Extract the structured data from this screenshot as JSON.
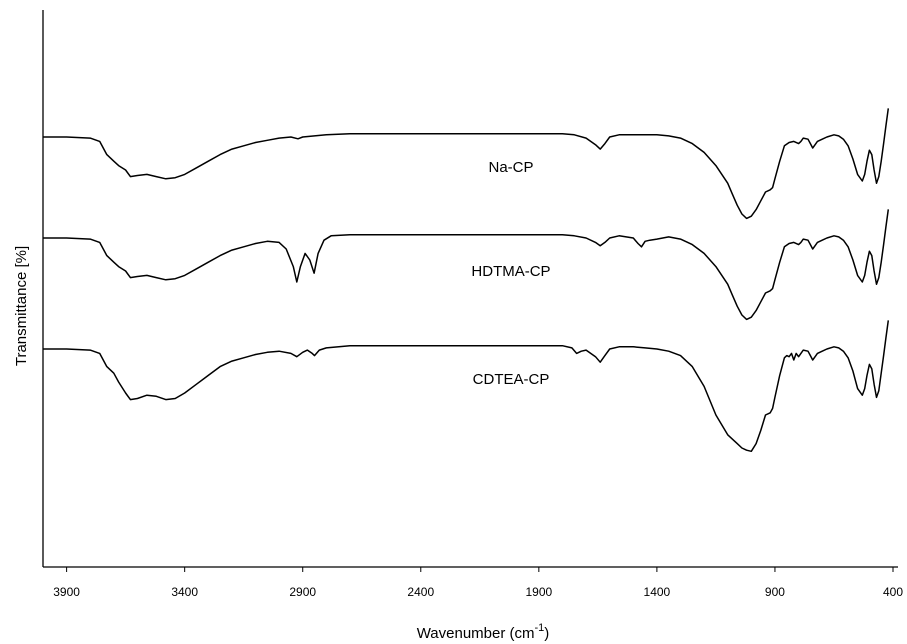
{
  "chart_data": {
    "type": "line",
    "title": "",
    "xlabel": "Wavenumber (cm",
    "xlabel_sup": "-1",
    "xlabel_close": ")",
    "ylabel": "Transmittance [%]",
    "xlim": [
      4000,
      400
    ],
    "x_reversed": true,
    "x_ticks": [
      3900,
      3400,
      2900,
      2400,
      1900,
      1400,
      900,
      400
    ],
    "y_ticks_shown": false,
    "grid": false,
    "legend": "inline labels",
    "series": [
      {
        "name": "Na-CP",
        "points": [
          [
            4000,
            25.0
          ],
          [
            3900,
            25.0
          ],
          [
            3800,
            25.5
          ],
          [
            3760,
            27.0
          ],
          [
            3730,
            33.0
          ],
          [
            3700,
            36.0
          ],
          [
            3680,
            38.0
          ],
          [
            3650,
            40.0
          ],
          [
            3630,
            43.0
          ],
          [
            3600,
            42.5
          ],
          [
            3560,
            42.0
          ],
          [
            3520,
            43.0
          ],
          [
            3480,
            44.0
          ],
          [
            3440,
            43.5
          ],
          [
            3400,
            42.0
          ],
          [
            3350,
            39.0
          ],
          [
            3300,
            36.0
          ],
          [
            3250,
            33.0
          ],
          [
            3200,
            30.5
          ],
          [
            3150,
            29.0
          ],
          [
            3100,
            27.5
          ],
          [
            3050,
            26.5
          ],
          [
            3000,
            25.5
          ],
          [
            2950,
            25.0
          ],
          [
            2920,
            25.8
          ],
          [
            2900,
            25.0
          ],
          [
            2850,
            24.5
          ],
          [
            2800,
            24.0
          ],
          [
            2700,
            23.5
          ],
          [
            2600,
            23.5
          ],
          [
            2500,
            23.5
          ],
          [
            2400,
            23.5
          ],
          [
            2300,
            23.5
          ],
          [
            2200,
            23.5
          ],
          [
            2100,
            23.5
          ],
          [
            2000,
            23.5
          ],
          [
            1900,
            23.5
          ],
          [
            1800,
            23.5
          ],
          [
            1750,
            24.0
          ],
          [
            1700,
            25.5
          ],
          [
            1660,
            28.5
          ],
          [
            1640,
            30.5
          ],
          [
            1620,
            28.0
          ],
          [
            1600,
            25.0
          ],
          [
            1560,
            24.0
          ],
          [
            1500,
            24.0
          ],
          [
            1450,
            24.0
          ],
          [
            1400,
            24.0
          ],
          [
            1350,
            24.5
          ],
          [
            1300,
            25.5
          ],
          [
            1250,
            28.0
          ],
          [
            1200,
            32.0
          ],
          [
            1150,
            38.0
          ],
          [
            1100,
            46.0
          ],
          [
            1080,
            51.0
          ],
          [
            1060,
            56.0
          ],
          [
            1040,
            60.0
          ],
          [
            1020,
            62.0
          ],
          [
            1000,
            61.0
          ],
          [
            980,
            58.0
          ],
          [
            960,
            54.0
          ],
          [
            940,
            50.0
          ],
          [
            920,
            49.0
          ],
          [
            910,
            48.0
          ],
          [
            900,
            44.0
          ],
          [
            880,
            36.0
          ],
          [
            860,
            29.0
          ],
          [
            840,
            27.5
          ],
          [
            820,
            27.0
          ],
          [
            800,
            28.0
          ],
          [
            790,
            27.0
          ],
          [
            780,
            25.5
          ],
          [
            760,
            26.0
          ],
          [
            750,
            28.0
          ],
          [
            740,
            30.0
          ],
          [
            730,
            28.5
          ],
          [
            720,
            27.0
          ],
          [
            700,
            26.0
          ],
          [
            680,
            25.0
          ],
          [
            650,
            24.0
          ],
          [
            630,
            24.5
          ],
          [
            610,
            26.0
          ],
          [
            590,
            29.0
          ],
          [
            570,
            35.0
          ],
          [
            550,
            42.0
          ],
          [
            530,
            45.0
          ],
          [
            520,
            42.0
          ],
          [
            510,
            36.0
          ],
          [
            500,
            31.0
          ],
          [
            490,
            33.0
          ],
          [
            480,
            40.0
          ],
          [
            470,
            46.0
          ],
          [
            460,
            43.0
          ],
          [
            450,
            36.0
          ],
          [
            440,
            28.0
          ],
          [
            430,
            20.0
          ],
          [
            420,
            12.0
          ]
        ]
      },
      {
        "name": "HDTMA-CP",
        "points": [
          [
            4000,
            25.0
          ],
          [
            3900,
            25.0
          ],
          [
            3800,
            25.5
          ],
          [
            3760,
            27.0
          ],
          [
            3730,
            33.0
          ],
          [
            3700,
            36.0
          ],
          [
            3680,
            38.0
          ],
          [
            3650,
            40.0
          ],
          [
            3630,
            43.0
          ],
          [
            3600,
            42.5
          ],
          [
            3560,
            42.0
          ],
          [
            3520,
            43.0
          ],
          [
            3480,
            44.0
          ],
          [
            3440,
            43.5
          ],
          [
            3400,
            42.0
          ],
          [
            3350,
            39.0
          ],
          [
            3300,
            36.0
          ],
          [
            3250,
            33.0
          ],
          [
            3200,
            30.5
          ],
          [
            3150,
            29.0
          ],
          [
            3100,
            27.5
          ],
          [
            3050,
            26.5
          ],
          [
            3000,
            27.0
          ],
          [
            2970,
            30.0
          ],
          [
            2940,
            38.0
          ],
          [
            2925,
            45.0
          ],
          [
            2910,
            38.0
          ],
          [
            2890,
            32.0
          ],
          [
            2870,
            35.0
          ],
          [
            2852,
            41.0
          ],
          [
            2835,
            32.0
          ],
          [
            2810,
            26.0
          ],
          [
            2780,
            24.0
          ],
          [
            2700,
            23.5
          ],
          [
            2600,
            23.5
          ],
          [
            2500,
            23.5
          ],
          [
            2400,
            23.5
          ],
          [
            2300,
            23.5
          ],
          [
            2200,
            23.5
          ],
          [
            2100,
            23.5
          ],
          [
            2000,
            23.5
          ],
          [
            1900,
            23.5
          ],
          [
            1800,
            23.5
          ],
          [
            1750,
            24.0
          ],
          [
            1700,
            25.0
          ],
          [
            1660,
            27.0
          ],
          [
            1640,
            28.5
          ],
          [
            1620,
            27.0
          ],
          [
            1600,
            25.0
          ],
          [
            1560,
            24.0
          ],
          [
            1500,
            25.0
          ],
          [
            1480,
            27.5
          ],
          [
            1465,
            29.0
          ],
          [
            1450,
            26.5
          ],
          [
            1430,
            26.0
          ],
          [
            1400,
            25.5
          ],
          [
            1350,
            24.5
          ],
          [
            1300,
            25.5
          ],
          [
            1250,
            28.0
          ],
          [
            1200,
            32.0
          ],
          [
            1150,
            38.0
          ],
          [
            1100,
            46.0
          ],
          [
            1080,
            51.0
          ],
          [
            1060,
            56.0
          ],
          [
            1040,
            60.0
          ],
          [
            1020,
            62.0
          ],
          [
            1000,
            61.0
          ],
          [
            980,
            58.0
          ],
          [
            960,
            54.0
          ],
          [
            940,
            50.0
          ],
          [
            920,
            49.0
          ],
          [
            910,
            48.0
          ],
          [
            900,
            44.0
          ],
          [
            880,
            36.0
          ],
          [
            860,
            29.0
          ],
          [
            840,
            27.5
          ],
          [
            820,
            27.0
          ],
          [
            800,
            28.0
          ],
          [
            790,
            27.0
          ],
          [
            780,
            25.5
          ],
          [
            760,
            26.0
          ],
          [
            750,
            28.0
          ],
          [
            740,
            30.0
          ],
          [
            730,
            28.5
          ],
          [
            720,
            27.0
          ],
          [
            700,
            26.0
          ],
          [
            680,
            25.0
          ],
          [
            650,
            24.0
          ],
          [
            630,
            24.5
          ],
          [
            610,
            26.0
          ],
          [
            590,
            29.0
          ],
          [
            570,
            35.0
          ],
          [
            550,
            42.0
          ],
          [
            530,
            45.0
          ],
          [
            520,
            42.0
          ],
          [
            510,
            36.0
          ],
          [
            500,
            31.0
          ],
          [
            490,
            33.0
          ],
          [
            480,
            40.0
          ],
          [
            470,
            46.0
          ],
          [
            460,
            43.0
          ],
          [
            450,
            36.0
          ],
          [
            440,
            28.0
          ],
          [
            430,
            20.0
          ],
          [
            420,
            12.0
          ]
        ]
      },
      {
        "name": "CDTEA-CP",
        "points": [
          [
            4000,
            25.0
          ],
          [
            3900,
            25.0
          ],
          [
            3800,
            25.5
          ],
          [
            3760,
            27.0
          ],
          [
            3730,
            33.0
          ],
          [
            3700,
            36.0
          ],
          [
            3680,
            40.0
          ],
          [
            3650,
            45.0
          ],
          [
            3630,
            48.0
          ],
          [
            3600,
            47.5
          ],
          [
            3560,
            46.0
          ],
          [
            3520,
            46.5
          ],
          [
            3480,
            48.0
          ],
          [
            3440,
            47.5
          ],
          [
            3400,
            45.0
          ],
          [
            3350,
            41.0
          ],
          [
            3300,
            37.0
          ],
          [
            3250,
            33.0
          ],
          [
            3200,
            30.5
          ],
          [
            3150,
            29.0
          ],
          [
            3100,
            27.5
          ],
          [
            3050,
            26.5
          ],
          [
            3000,
            26.0
          ],
          [
            2950,
            27.0
          ],
          [
            2925,
            28.5
          ],
          [
            2900,
            26.5
          ],
          [
            2880,
            25.5
          ],
          [
            2860,
            27.0
          ],
          [
            2850,
            28.0
          ],
          [
            2830,
            25.5
          ],
          [
            2800,
            24.5
          ],
          [
            2700,
            23.5
          ],
          [
            2600,
            23.5
          ],
          [
            2500,
            23.5
          ],
          [
            2400,
            23.5
          ],
          [
            2300,
            23.5
          ],
          [
            2200,
            23.5
          ],
          [
            2100,
            23.5
          ],
          [
            2000,
            23.5
          ],
          [
            1900,
            23.5
          ],
          [
            1800,
            23.5
          ],
          [
            1760,
            24.5
          ],
          [
            1740,
            27.0
          ],
          [
            1720,
            26.0
          ],
          [
            1700,
            25.5
          ],
          [
            1660,
            28.5
          ],
          [
            1640,
            31.0
          ],
          [
            1620,
            28.0
          ],
          [
            1600,
            25.0
          ],
          [
            1560,
            24.0
          ],
          [
            1500,
            24.0
          ],
          [
            1450,
            24.5
          ],
          [
            1400,
            25.0
          ],
          [
            1350,
            26.0
          ],
          [
            1300,
            28.0
          ],
          [
            1250,
            33.0
          ],
          [
            1200,
            42.0
          ],
          [
            1150,
            55.0
          ],
          [
            1100,
            64.0
          ],
          [
            1060,
            68.0
          ],
          [
            1040,
            70.0
          ],
          [
            1020,
            71.0
          ],
          [
            1000,
            71.5
          ],
          [
            980,
            68.0
          ],
          [
            960,
            62.0
          ],
          [
            940,
            55.0
          ],
          [
            920,
            54.0
          ],
          [
            910,
            52.0
          ],
          [
            900,
            47.0
          ],
          [
            880,
            37.0
          ],
          [
            860,
            29.0
          ],
          [
            850,
            28.0
          ],
          [
            840,
            28.5
          ],
          [
            830,
            27.0
          ],
          [
            820,
            30.0
          ],
          [
            810,
            27.0
          ],
          [
            800,
            28.5
          ],
          [
            790,
            27.0
          ],
          [
            780,
            25.5
          ],
          [
            760,
            26.0
          ],
          [
            750,
            28.0
          ],
          [
            740,
            30.0
          ],
          [
            730,
            28.5
          ],
          [
            720,
            27.0
          ],
          [
            700,
            26.0
          ],
          [
            680,
            25.0
          ],
          [
            650,
            24.0
          ],
          [
            630,
            24.5
          ],
          [
            610,
            26.0
          ],
          [
            590,
            29.0
          ],
          [
            570,
            35.0
          ],
          [
            550,
            43.0
          ],
          [
            530,
            46.0
          ],
          [
            520,
            43.0
          ],
          [
            510,
            37.0
          ],
          [
            500,
            32.0
          ],
          [
            490,
            34.0
          ],
          [
            480,
            41.0
          ],
          [
            470,
            47.0
          ],
          [
            460,
            44.0
          ],
          [
            450,
            36.0
          ],
          [
            440,
            28.0
          ],
          [
            430,
            20.0
          ],
          [
            420,
            12.0
          ]
        ]
      }
    ]
  }
}
